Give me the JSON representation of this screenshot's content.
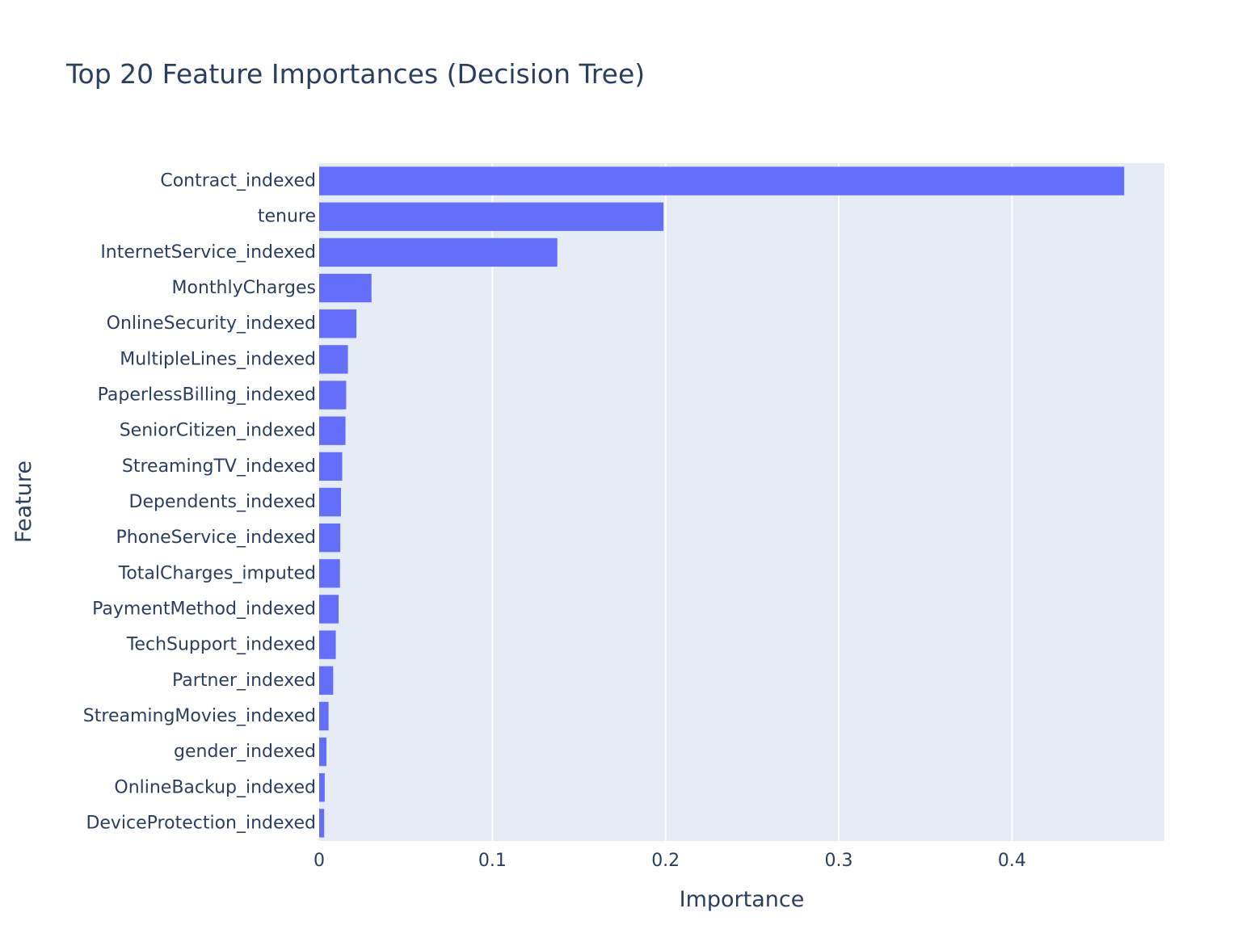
{
  "chart_data": {
    "type": "bar",
    "orientation": "horizontal",
    "title": "Top 20 Feature Importances (Decision Tree)",
    "xlabel": "Importance",
    "ylabel": "Feature",
    "xlim": [
      0,
      0.488
    ],
    "xticks": [
      {
        "value": 0,
        "label": "0"
      },
      {
        "value": 0.1,
        "label": "0.1"
      },
      {
        "value": 0.2,
        "label": "0.2"
      },
      {
        "value": 0.3,
        "label": "0.3"
      },
      {
        "value": 0.4,
        "label": "0.4"
      }
    ],
    "grid": true,
    "colors": {
      "bar": "#636efa",
      "plot_bg": "#e5ecf6",
      "grid": "#ffffff",
      "text": "#2a3f5f"
    },
    "categories": [
      "Contract_indexed",
      "tenure",
      "InternetService_indexed",
      "MonthlyCharges",
      "OnlineSecurity_indexed",
      "MultipleLines_indexed",
      "PaperlessBilling_indexed",
      "SeniorCitizen_indexed",
      "StreamingTV_indexed",
      "Dependents_indexed",
      "PhoneService_indexed",
      "TotalCharges_imputed",
      "PaymentMethod_indexed",
      "TechSupport_indexed",
      "Partner_indexed",
      "StreamingMovies_indexed",
      "gender_indexed",
      "OnlineBackup_indexed",
      "DeviceProtection_indexed"
    ],
    "values": [
      0.4648,
      0.1988,
      0.1375,
      0.0302,
      0.0215,
      0.0166,
      0.0156,
      0.0152,
      0.0133,
      0.0126,
      0.0122,
      0.012,
      0.0112,
      0.0096,
      0.0081,
      0.0054,
      0.0042,
      0.0032,
      0.0029
    ]
  }
}
